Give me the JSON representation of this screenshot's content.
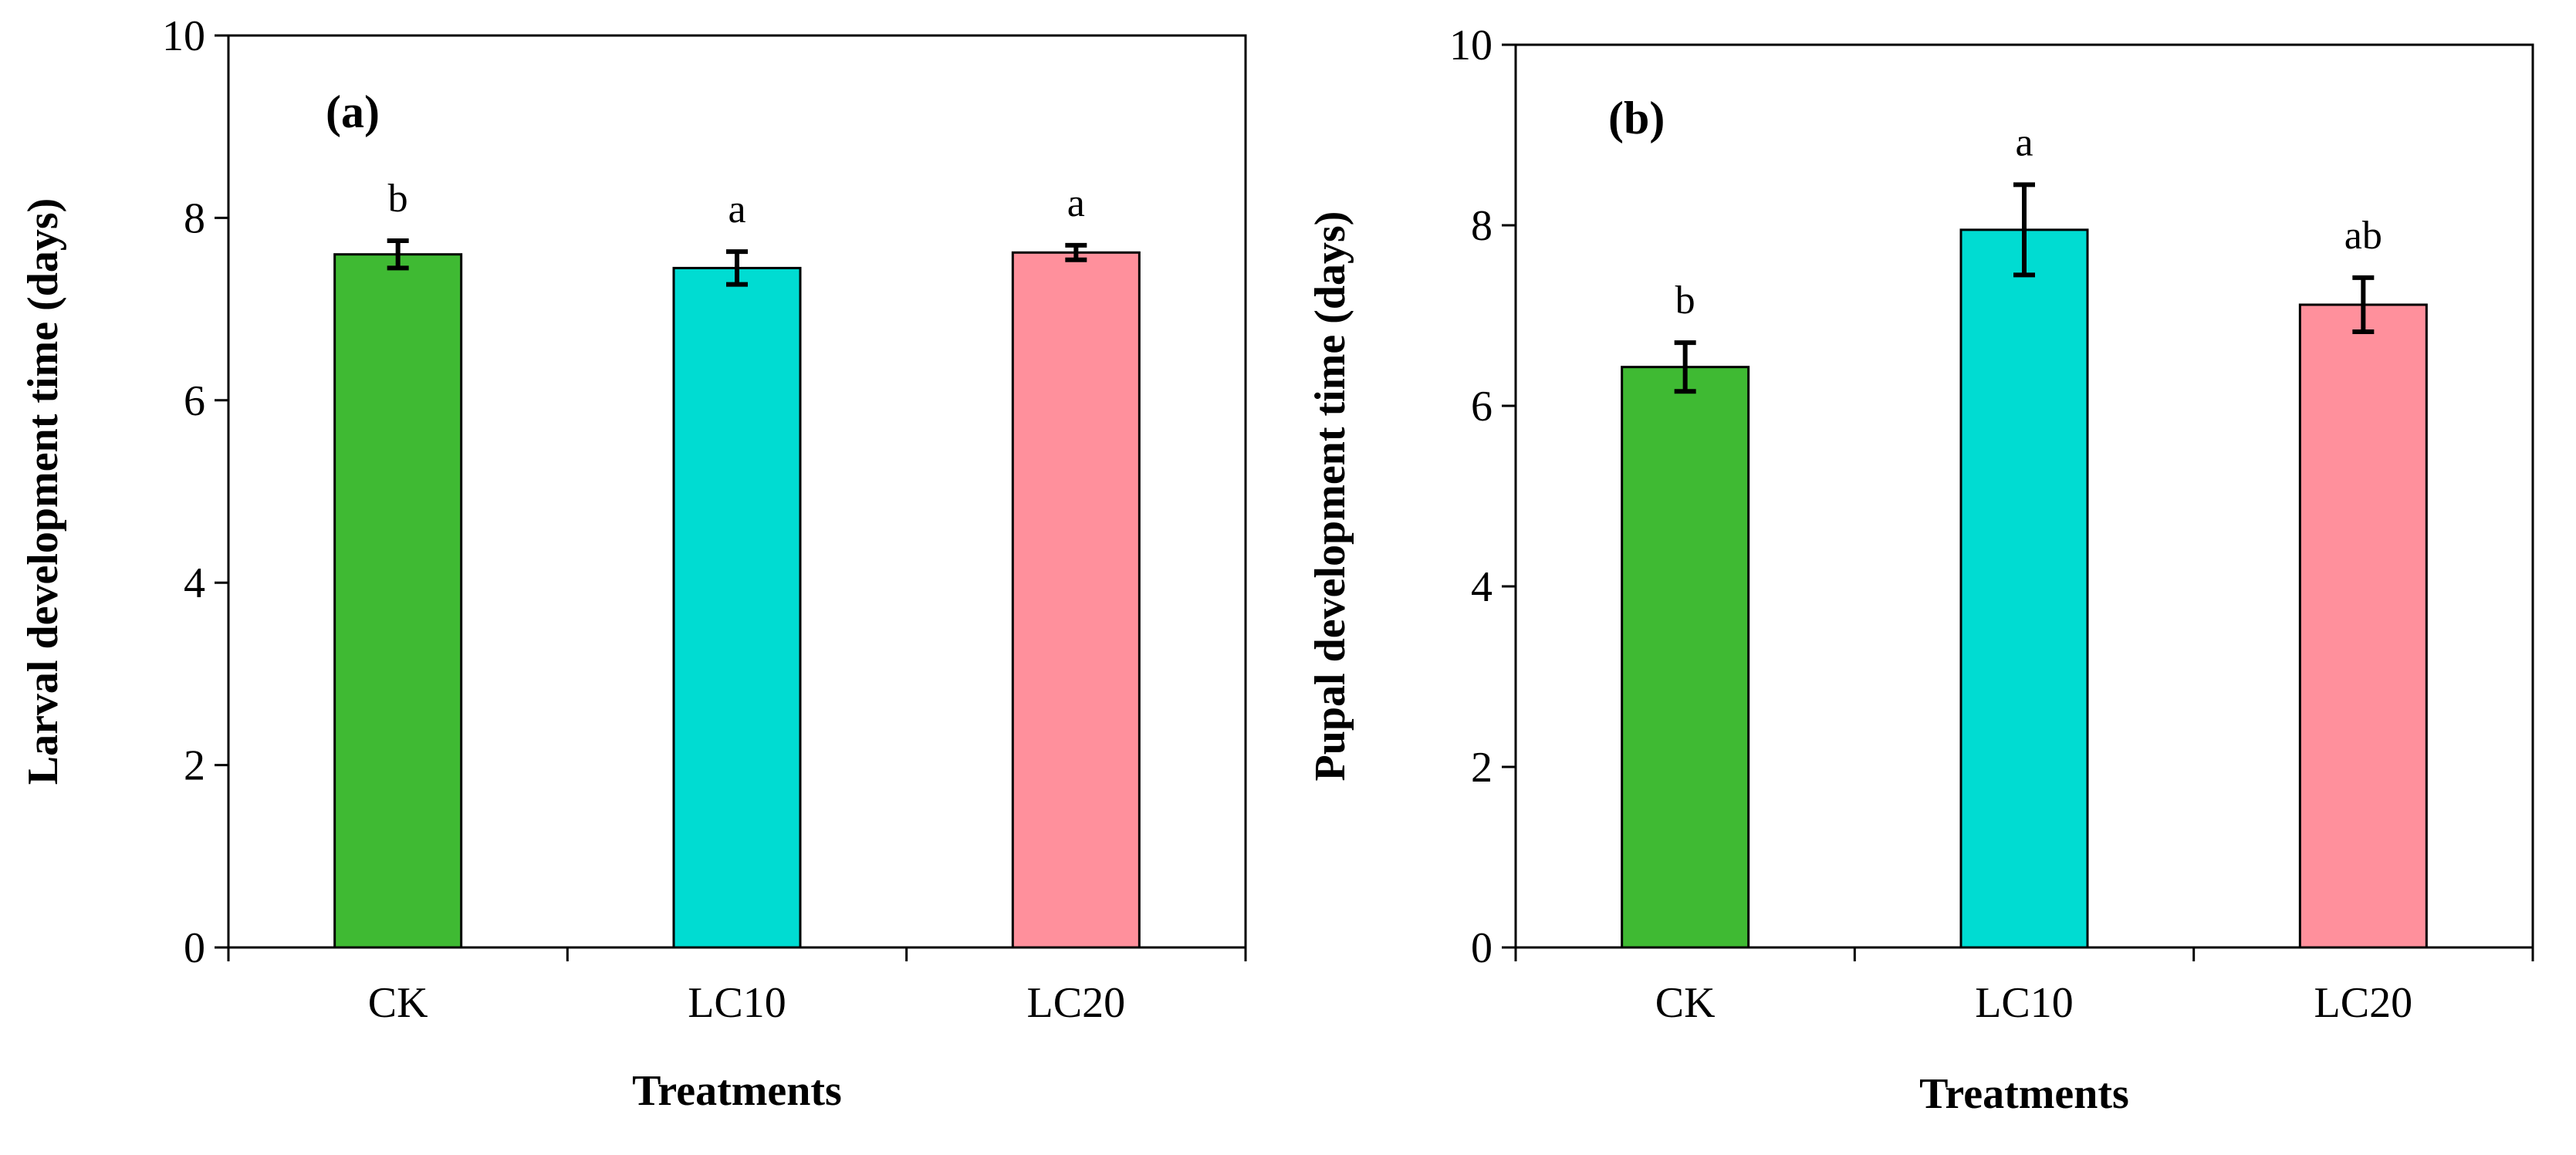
{
  "chart_data": [
    {
      "type": "bar",
      "panel_label": "(a)",
      "categories": [
        "CK",
        "LC10",
        "LC20"
      ],
      "values": [
        7.6,
        7.45,
        7.62
      ],
      "errors": [
        0.15,
        0.18,
        0.08
      ],
      "significance": [
        "b",
        "a",
        "a"
      ],
      "colors": [
        "#3fba33",
        "#00dcd2",
        "#ff909c"
      ],
      "xlabel": "Treatments",
      "ylabel": "Larval development time (days)",
      "ylim": [
        0,
        10
      ],
      "yticks": [
        0,
        2,
        4,
        6,
        8,
        10
      ]
    },
    {
      "type": "bar",
      "panel_label": "(b)",
      "categories": [
        "CK",
        "LC10",
        "LC20"
      ],
      "values": [
        6.43,
        7.95,
        7.12
      ],
      "errors": [
        0.27,
        0.5,
        0.3
      ],
      "significance": [
        "b",
        "a",
        "ab"
      ],
      "colors": [
        "#3fba33",
        "#00dcd2",
        "#ff909c"
      ],
      "xlabel": "Treatments",
      "ylabel": "Pupal development time (days)",
      "ylim": [
        0,
        10
      ],
      "yticks": [
        0,
        2,
        4,
        6,
        8,
        10
      ]
    }
  ]
}
